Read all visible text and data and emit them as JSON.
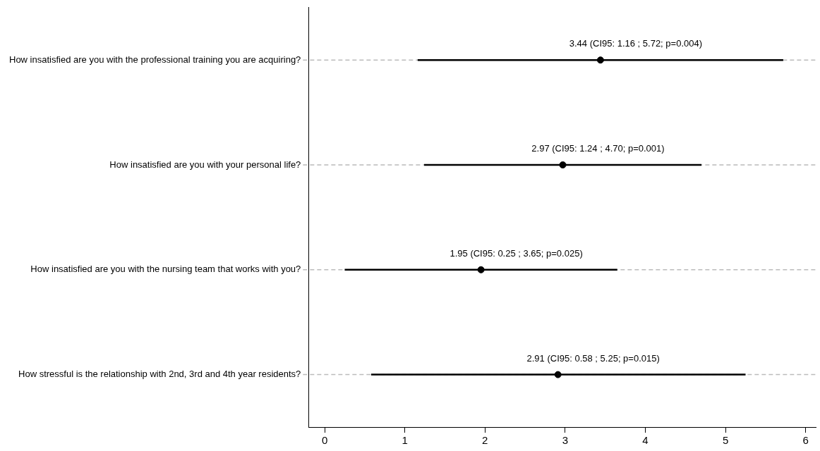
{
  "chart_data": {
    "type": "scatter",
    "orientation": "horizontal",
    "categories": [
      "How insatisfied are you with the professional training you are acquiring?",
      "How insatisfied are you with your personal life?",
      "How insatisfied are you with the nursing team that works with you?",
      "How stressful is the relationship with 2nd, 3rd and 4th year residents?"
    ],
    "values": [
      3.44,
      2.97,
      1.95,
      2.91
    ],
    "errors": [
      [
        1.16,
        5.72
      ],
      [
        1.24,
        4.7
      ],
      [
        0.25,
        3.65
      ],
      [
        0.58,
        5.25
      ]
    ],
    "value_labels": [
      "3.44 (CI95: 1.16 ; 5.72; p=0.004)",
      "2.97 (CI95: 1.24 ; 4.70; p=0.001)",
      "1.95 (CI95: 0.25 ; 3.65; p=0.025)",
      "2.91 (CI95: 0.58 ; 5.25; p=0.015)"
    ],
    "color": "#000000",
    "marker": "circle",
    "xlim": [
      -0.2,
      6.13
    ],
    "xticks": [
      0,
      1,
      2,
      3,
      4,
      5,
      6
    ],
    "grid": "y",
    "legend": false
  }
}
